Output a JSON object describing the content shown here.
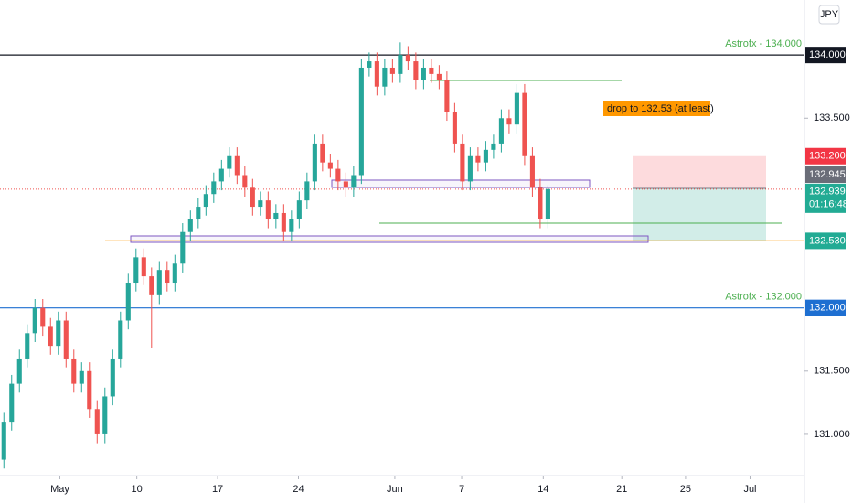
{
  "chart_data": {
    "type": "candlestick",
    "currency": "JPY",
    "categories": [
      null,
      null,
      null,
      null,
      null,
      null,
      null,
      null,
      null,
      null,
      null,
      null,
      null,
      null,
      null,
      null,
      null,
      null,
      null,
      null,
      null,
      null,
      null,
      null,
      null,
      null,
      null,
      null,
      null,
      null,
      null,
      null,
      null,
      null,
      null,
      null,
      null,
      null,
      null,
      null,
      null,
      null,
      null,
      null,
      null,
      null,
      null,
      null,
      null,
      null,
      null,
      null,
      null,
      null,
      null,
      null,
      null,
      null,
      null,
      null,
      null,
      null,
      null,
      null,
      null,
      null,
      null,
      null,
      null,
      null,
      null
    ],
    "open": [
      130.8,
      131.1,
      131.4,
      131.6,
      131.8,
      132.0,
      131.85,
      131.7,
      131.9,
      131.6,
      131.4,
      131.5,
      131.2,
      131.0,
      131.3,
      131.6,
      131.9,
      132.2,
      132.4,
      132.25,
      132.1,
      132.3,
      132.2,
      132.35,
      132.6,
      132.7,
      132.8,
      132.9,
      133.0,
      133.1,
      133.2,
      133.05,
      132.95,
      132.8,
      132.85,
      132.7,
      132.75,
      132.6,
      132.7,
      132.85,
      133.0,
      133.3,
      133.15,
      133.1,
      133.0,
      132.95,
      133.05,
      133.9,
      133.95,
      133.75,
      133.9,
      133.85,
      134.0,
      133.95,
      133.8,
      133.9,
      133.85,
      133.8,
      133.55,
      133.3,
      133.0,
      133.2,
      133.15,
      133.25,
      133.3,
      133.5,
      133.45,
      133.7,
      133.2,
      132.95,
      132.7
    ],
    "high": [
      131.17,
      131.47,
      131.67,
      131.87,
      132.07,
      132.07,
      131.92,
      131.97,
      131.97,
      131.67,
      131.57,
      131.57,
      131.27,
      131.37,
      131.67,
      131.97,
      132.27,
      132.47,
      132.47,
      132.32,
      132.37,
      132.37,
      132.42,
      132.67,
      132.77,
      132.87,
      132.97,
      133.07,
      133.17,
      133.27,
      133.27,
      133.12,
      133.02,
      132.92,
      132.92,
      132.82,
      132.82,
      132.77,
      132.92,
      133.07,
      133.37,
      133.37,
      133.22,
      133.17,
      133.07,
      133.12,
      133.97,
      134.02,
      134.02,
      133.97,
      133.97,
      134.1,
      134.07,
      134.02,
      133.97,
      133.97,
      133.92,
      133.87,
      133.62,
      133.37,
      133.27,
      133.27,
      133.32,
      133.37,
      133.57,
      133.57,
      133.77,
      133.77,
      133.27,
      133.02,
      132.97
    ],
    "low": [
      130.73,
      131.03,
      131.33,
      131.53,
      131.73,
      131.78,
      131.63,
      131.63,
      131.53,
      131.33,
      131.33,
      131.13,
      130.93,
      130.93,
      131.23,
      131.53,
      131.83,
      132.13,
      132.18,
      131.68,
      132.03,
      132.13,
      132.13,
      132.28,
      132.53,
      132.63,
      132.73,
      132.83,
      132.93,
      133.03,
      132.98,
      132.88,
      132.73,
      132.73,
      132.63,
      132.63,
      132.53,
      132.53,
      132.63,
      132.78,
      132.93,
      133.08,
      133.03,
      132.93,
      132.88,
      132.88,
      132.98,
      133.83,
      133.68,
      133.68,
      133.78,
      133.78,
      133.88,
      133.73,
      133.73,
      133.78,
      133.73,
      133.48,
      133.23,
      132.93,
      132.93,
      133.08,
      133.08,
      133.18,
      133.23,
      133.38,
      133.38,
      133.13,
      132.88,
      132.63,
      132.63
    ],
    "close": [
      131.1,
      131.4,
      131.6,
      131.8,
      132.0,
      131.85,
      131.7,
      131.9,
      131.6,
      131.4,
      131.5,
      131.2,
      131.0,
      131.3,
      131.6,
      131.9,
      132.2,
      132.4,
      132.25,
      132.1,
      132.3,
      132.2,
      132.35,
      132.6,
      132.7,
      132.8,
      132.9,
      133.0,
      133.1,
      133.2,
      133.05,
      132.95,
      132.8,
      132.85,
      132.7,
      132.75,
      132.6,
      132.7,
      132.85,
      133.0,
      133.3,
      133.15,
      133.1,
      133.0,
      132.95,
      133.05,
      133.9,
      133.95,
      133.75,
      133.9,
      133.85,
      134.0,
      133.95,
      133.8,
      133.9,
      133.85,
      133.8,
      133.55,
      133.3,
      133.0,
      133.2,
      133.15,
      133.25,
      133.3,
      133.5,
      133.45,
      133.7,
      133.2,
      132.95,
      132.7,
      132.94
    ],
    "up_color": "#26a69a",
    "down_color": "#ef5350",
    "xlim": [
      -0.5,
      103
    ],
    "ylim": [
      130.674,
      134.435
    ],
    "xticks": [
      {
        "value": 7.2,
        "label": "May"
      },
      {
        "value": 17.1,
        "label": "10"
      },
      {
        "value": 27.5,
        "label": "17"
      },
      {
        "value": 37.9,
        "label": "24"
      },
      {
        "value": 50.3,
        "label": "Jun"
      },
      {
        "value": 58.9,
        "label": "7"
      },
      {
        "value": 69.4,
        "label": "14"
      },
      {
        "value": 79.5,
        "label": "21"
      },
      {
        "value": 87.7,
        "label": "25"
      },
      {
        "value": 96,
        "label": "Jul"
      }
    ],
    "yticks": [
      {
        "value": 133.5,
        "label": "133.500"
      },
      {
        "value": 131.5,
        "label": "131.500"
      },
      {
        "value": 131.0,
        "label": "131.000"
      }
    ],
    "levels": [
      {
        "value": 134.0,
        "label": "134.000",
        "color": "#131722",
        "note": "Astrofx - 134.000"
      },
      {
        "value": 132.0,
        "label": "132.000",
        "color": "#1e6fd1",
        "note": "Astrofx - 132.000"
      },
      {
        "value": 132.53,
        "label": "132.530",
        "color": "#ff9800"
      }
    ],
    "price_labels": [
      {
        "value": 133.2,
        "label": "133.200",
        "color": "#f23645"
      },
      {
        "value": 132.945,
        "label": "132.945",
        "color": "#6a6d78"
      },
      {
        "value": 132.939,
        "label": "132.939",
        "color": "#22ab94",
        "timer": "01:16:48"
      },
      {
        "value": 132.53,
        "label": "132.530",
        "color": "#22ab94"
      }
    ],
    "annotation": "drop to 132.53 (at least)"
  }
}
